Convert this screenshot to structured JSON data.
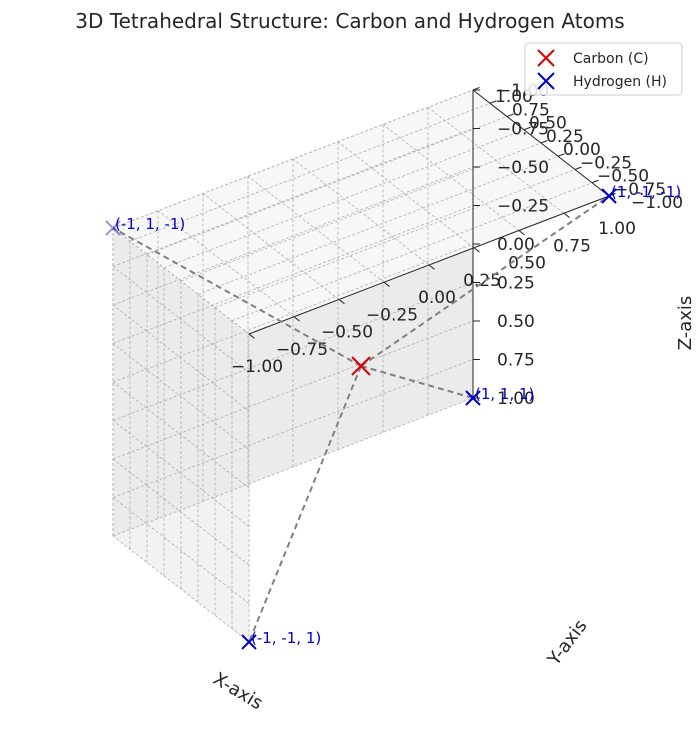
{
  "chart_data": {
    "type": "scatter",
    "subtype": "3d",
    "title": "3D Tetrahedral Structure: Carbon and Hydrogen Atoms",
    "xlabel": "X-axis",
    "ylabel": "Y-axis",
    "zlabel": "Z-axis",
    "xlim": [
      -1,
      1
    ],
    "ylim": [
      -1,
      1
    ],
    "zlim": [
      -1,
      1
    ],
    "xticks": [
      "−1.00",
      "−0.75",
      "−0.50",
      "−0.25",
      "0.00",
      "0.25",
      "0.50",
      "0.75",
      "1.00"
    ],
    "yticks": [
      "−1.00",
      "−0.75",
      "−0.50",
      "−0.25",
      "0.00",
      "0.25",
      "0.50",
      "0.75",
      "1.00"
    ],
    "zticks": [
      "−1.00",
      "−0.75",
      "−0.50",
      "−0.25",
      "0.00",
      "0.25",
      "0.50",
      "0.75",
      "1.00"
    ],
    "grid": true,
    "legend_position": "top-right",
    "series": [
      {
        "name": "Carbon (C)",
        "color": "#dd0000",
        "marker": "x",
        "points": [
          {
            "x": 0,
            "y": 0,
            "z": 0
          }
        ]
      },
      {
        "name": "Hydrogen (H)",
        "color": "#0000cc",
        "marker": "x",
        "points": [
          {
            "x": 1,
            "y": 1,
            "z": 1,
            "label": "(1, 1, 1)"
          },
          {
            "x": -1,
            "y": -1,
            "z": 1,
            "label": "(-1, -1, 1)"
          },
          {
            "x": -1,
            "y": 1,
            "z": -1,
            "label": "(-1, 1, -1)"
          },
          {
            "x": 1,
            "y": -1,
            "z": -1,
            "label": "(1, -1, -1)"
          }
        ]
      }
    ],
    "bonds": {
      "style": "dashed",
      "color": "#808080"
    }
  }
}
